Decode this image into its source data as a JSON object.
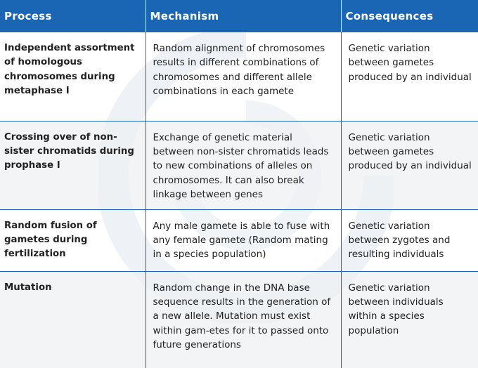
{
  "headers": {
    "process": "Process",
    "mechanism": "Mechanism",
    "consequences": "Consequences"
  },
  "rows": [
    {
      "process": "Independent assortment of homologous chromosomes during metaphase I",
      "mechanism": "Random alignment of chromosomes results in different combinations of chromosomes and different allele combinations in each gamete",
      "consequences": "Genetic variation between gametes produced by an individual"
    },
    {
      "process": "Crossing over of non-sister chromatids during prophase I",
      "mechanism": "Exchange of genetic material between non-sister chromatids leads to new combinations of alleles on chromosomes. It can also break linkage between genes",
      "consequences": "Genetic variation between gametes produced by an individual"
    },
    {
      "process": "Random fusion of gametes during fertilization",
      "mechanism": "Any male gamete is able to fuse with any female gamete (Random mating in a species population)",
      "consequences": "Genetic variation between zygotes and resulting individuals"
    },
    {
      "process": "Mutation",
      "mechanism": "Random change in the DNA base sequence results in the generation of a new allele. Mutation must exist within gam-etes for it to passed onto future generations",
      "consequences": "Genetic variation between individuals within a species population"
    }
  ]
}
